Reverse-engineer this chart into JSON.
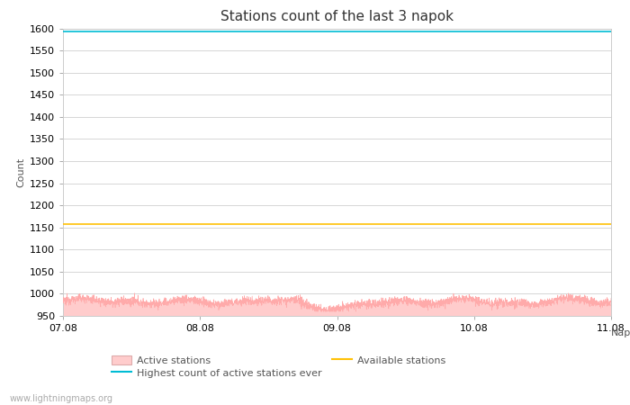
{
  "title": "Stations count of the last 3 napok",
  "xlabel": "Nap",
  "ylabel": "Count",
  "ylim": [
    950,
    1600
  ],
  "yticks": [
    950,
    1000,
    1050,
    1100,
    1150,
    1200,
    1250,
    1300,
    1350,
    1400,
    1450,
    1500,
    1550,
    1600
  ],
  "xlim_days": [
    0,
    4
  ],
  "xtick_labels": [
    "07.08",
    "08.08",
    "09.08",
    "10.08",
    "11.08"
  ],
  "xtick_positions": [
    0,
    1,
    2,
    3,
    4
  ],
  "highest_ever": 1593,
  "available_stations": 1158,
  "active_mean": 982,
  "bg_color": "#ffffff",
  "grid_color": "#d0d0d0",
  "active_fill_color": "#ffcccc",
  "active_line_color": "#ffaaaa",
  "highest_line_color": "#00bcd4",
  "available_line_color": "#ffc107",
  "watermark": "www.lightningmaps.org",
  "title_fontsize": 11,
  "axis_label_fontsize": 8,
  "tick_fontsize": 8,
  "legend_fontsize": 8
}
